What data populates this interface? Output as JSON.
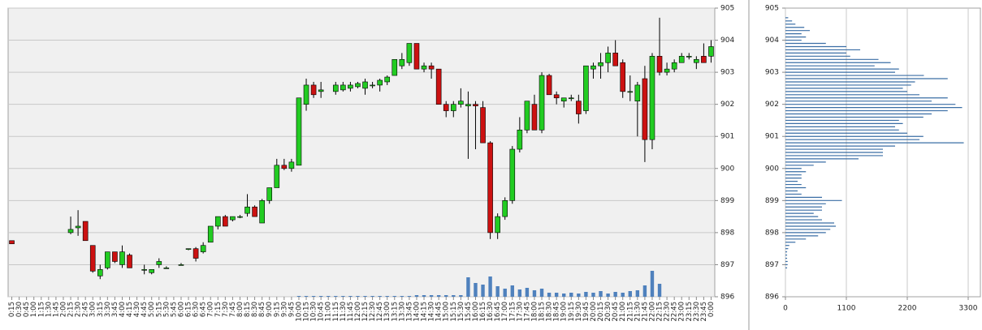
{
  "chart_data": [
    {
      "type": "candlestick",
      "categories": [
        "0:15",
        "0:30",
        "0:45",
        "1:00",
        "1:15",
        "1:30",
        "1:45",
        "2:00",
        "2:15",
        "2:30",
        "2:45",
        "3:00",
        "3:15",
        "3:30",
        "3:45",
        "4:00",
        "4:15",
        "4:30",
        "4:45",
        "5:00",
        "5:15",
        "5:30",
        "5:45",
        "6:00",
        "6:15",
        "6:30",
        "6:45",
        "7:00",
        "7:15",
        "7:30",
        "7:45",
        "8:00",
        "8:15",
        "8:30",
        "8:45",
        "9:00",
        "9:15",
        "9:30",
        "9:45",
        "10:00",
        "10:15",
        "10:30",
        "10:45",
        "11:00",
        "11:15",
        "11:30",
        "11:45",
        "12:00",
        "12:15",
        "12:30",
        "12:45",
        "13:00",
        "13:15",
        "13:30",
        "13:45",
        "14:00",
        "14:15",
        "14:30",
        "14:45",
        "15:00",
        "15:15",
        "15:30",
        "15:45",
        "16:00",
        "16:15",
        "16:30",
        "16:45",
        "17:00",
        "17:15",
        "17:30",
        "17:45",
        "18:00",
        "18:15",
        "18:30",
        "18:45",
        "19:00",
        "19:15",
        "19:30",
        "19:45",
        "20:00",
        "20:15",
        "20:30",
        "20:45",
        "21:00",
        "21:15",
        "21:30",
        "21:45",
        "22:00",
        "22:15",
        "22:30",
        "22:45",
        "23:00",
        "23:15",
        "23:30",
        "23:45",
        "0:00"
      ],
      "open": [
        897.75,
        null,
        null,
        null,
        null,
        null,
        null,
        null,
        898.0,
        898.15,
        898.35,
        897.6,
        896.65,
        896.9,
        897.4,
        897.0,
        897.3,
        null,
        896.85,
        896.75,
        897.0,
        896.9,
        null,
        897.0,
        897.5,
        897.5,
        897.4,
        897.7,
        898.2,
        898.5,
        898.4,
        898.5,
        898.6,
        898.8,
        898.3,
        899.0,
        899.4,
        900.1,
        900.0,
        900.1,
        902.0,
        902.6,
        902.4,
        null,
        902.4,
        902.45,
        902.5,
        902.55,
        902.5,
        902.6,
        902.6,
        902.7,
        902.9,
        903.2,
        903.3,
        903.9,
        903.1,
        903.2,
        903.1,
        902.0,
        901.8,
        902.0,
        901.95,
        902.0,
        901.9,
        900.8,
        898.0,
        898.5,
        899.0,
        900.6,
        901.2,
        902.0,
        901.2,
        902.9,
        902.3,
        902.1,
        902.2,
        902.1,
        901.8,
        903.1,
        903.2,
        903.3,
        903.6,
        903.3,
        902.4,
        902.1,
        902.8,
        900.9,
        903.5,
        903.0,
        903.1,
        903.3,
        903.5,
        903.3,
        903.5,
        903.5
      ],
      "high": [
        897.75,
        null,
        null,
        null,
        null,
        null,
        null,
        null,
        898.5,
        898.7,
        898.35,
        897.6,
        897.0,
        897.4,
        897.4,
        897.6,
        897.35,
        null,
        897.0,
        896.85,
        897.2,
        896.95,
        null,
        897.05,
        897.5,
        897.55,
        897.7,
        898.2,
        898.5,
        898.55,
        898.5,
        898.55,
        899.2,
        898.85,
        899.05,
        899.4,
        900.3,
        900.3,
        900.3,
        902.2,
        902.8,
        902.7,
        902.7,
        null,
        902.7,
        902.7,
        902.7,
        902.7,
        902.8,
        902.7,
        902.8,
        902.9,
        903.4,
        903.6,
        903.9,
        903.9,
        903.3,
        903.3,
        903.1,
        902.1,
        902.1,
        902.5,
        902.4,
        902.1,
        902.1,
        900.85,
        898.6,
        899.1,
        900.7,
        901.6,
        902.1,
        902.3,
        903.0,
        902.95,
        902.4,
        902.2,
        902.3,
        902.3,
        903.2,
        903.3,
        903.6,
        903.8,
        904.0,
        903.4,
        902.9,
        902.7,
        903.2,
        903.6,
        904.7,
        903.3,
        903.4,
        903.6,
        903.6,
        903.5,
        903.9,
        904.0
      ],
      "low": [
        897.65,
        null,
        null,
        null,
        null,
        null,
        null,
        null,
        897.95,
        897.9,
        897.75,
        896.75,
        896.55,
        896.85,
        897.05,
        896.9,
        896.9,
        null,
        896.7,
        896.7,
        896.9,
        896.9,
        null,
        897.0,
        897.45,
        897.1,
        897.35,
        897.7,
        898.1,
        898.2,
        898.35,
        898.45,
        898.5,
        898.5,
        898.3,
        898.9,
        899.4,
        899.95,
        899.9,
        900.1,
        901.8,
        902.2,
        902.2,
        null,
        902.3,
        902.4,
        902.4,
        902.5,
        902.3,
        902.5,
        902.4,
        902.6,
        902.9,
        903.1,
        903.2,
        903.1,
        903.0,
        902.8,
        902.0,
        901.6,
        901.6,
        901.9,
        900.3,
        900.6,
        900.8,
        897.8,
        897.8,
        898.4,
        898.9,
        900.5,
        901.1,
        901.2,
        901.1,
        902.3,
        902.0,
        901.9,
        902.1,
        901.4,
        901.7,
        902.8,
        902.8,
        903.0,
        903.2,
        902.2,
        902.1,
        901.0,
        900.2,
        900.6,
        902.9,
        902.9,
        903.0,
        903.3,
        903.4,
        903.1,
        903.3,
        903.3
      ],
      "close": [
        897.65,
        null,
        null,
        null,
        null,
        null,
        null,
        null,
        898.1,
        898.2,
        897.75,
        896.8,
        896.85,
        897.4,
        897.1,
        897.4,
        896.9,
        null,
        896.85,
        896.85,
        897.1,
        896.9,
        null,
        897.0,
        897.5,
        897.2,
        897.6,
        898.2,
        898.5,
        898.2,
        898.5,
        898.5,
        898.8,
        898.5,
        899.0,
        899.4,
        900.1,
        900.0,
        900.2,
        902.2,
        902.6,
        902.3,
        902.45,
        null,
        902.6,
        902.6,
        902.6,
        902.65,
        902.7,
        902.6,
        902.75,
        902.85,
        903.4,
        903.4,
        903.9,
        903.1,
        903.2,
        903.1,
        902.0,
        901.8,
        902.0,
        902.1,
        902.0,
        901.95,
        900.8,
        898.0,
        898.5,
        899.0,
        900.6,
        901.2,
        902.1,
        901.2,
        902.9,
        902.3,
        902.2,
        902.2,
        902.2,
        901.7,
        903.2,
        903.2,
        903.3,
        903.6,
        903.2,
        902.4,
        902.4,
        902.6,
        900.9,
        903.5,
        903.0,
        903.1,
        903.3,
        903.5,
        903.5,
        903.4,
        903.3,
        903.8
      ],
      "volume": [
        null,
        null,
        null,
        null,
        null,
        null,
        null,
        null,
        null,
        null,
        null,
        null,
        null,
        null,
        null,
        null,
        null,
        null,
        null,
        null,
        null,
        null,
        null,
        null,
        null,
        null,
        null,
        null,
        null,
        null,
        null,
        null,
        null,
        null,
        null,
        null,
        null,
        null,
        null,
        100,
        100,
        100,
        100,
        100,
        100,
        100,
        100,
        100,
        100,
        100,
        100,
        100,
        100,
        100,
        100,
        200,
        200,
        200,
        200,
        200,
        200,
        200,
        2400,
        1700,
        1500,
        2500,
        1300,
        1000,
        1400,
        900,
        1100,
        800,
        1000,
        500,
        500,
        400,
        500,
        400,
        600,
        500,
        700,
        400,
        600,
        500,
        700,
        800,
        1400,
        3200,
        1600,
        null,
        null,
        null,
        null,
        null,
        null,
        null
      ],
      "up_color": "#22cc22",
      "down_color": "#cc1111",
      "volume_color": "#4f81bd",
      "ylim": [
        896,
        905
      ],
      "yticks": [
        896,
        897,
        898,
        899,
        900,
        901,
        902,
        903,
        904,
        905
      ],
      "grid": true
    },
    {
      "type": "hbar",
      "y": [
        904.7,
        904.6,
        904.5,
        904.4,
        904.3,
        904.2,
        904.1,
        904.0,
        903.9,
        903.8,
        903.7,
        903.6,
        903.5,
        903.4,
        903.3,
        903.2,
        903.1,
        903.0,
        902.9,
        902.8,
        902.7,
        902.6,
        902.5,
        902.4,
        902.3,
        902.2,
        902.1,
        902.0,
        901.9,
        901.8,
        901.7,
        901.6,
        901.5,
        901.4,
        901.3,
        901.2,
        901.1,
        901.0,
        900.9,
        900.8,
        900.7,
        900.6,
        900.5,
        900.4,
        900.3,
        900.2,
        900.1,
        900.0,
        899.9,
        899.8,
        899.7,
        899.6,
        899.5,
        899.4,
        899.3,
        899.2,
        899.1,
        899.0,
        898.9,
        898.8,
        898.7,
        898.6,
        898.5,
        898.4,
        898.3,
        898.2,
        898.1,
        898.0,
        897.9,
        897.8,
        897.7,
        897.6,
        897.5,
        897.4,
        897.3,
        897.2,
        897.1,
        897.0,
        896.9
      ],
      "values": [
        50,
        120,
        180,
        340,
        440,
        290,
        370,
        290,
        730,
        1100,
        1350,
        1100,
        1170,
        1680,
        1900,
        1610,
        2050,
        1980,
        2500,
        2930,
        2340,
        2270,
        2120,
        2200,
        2420,
        2930,
        2640,
        3070,
        3190,
        2930,
        2640,
        2490,
        2050,
        2120,
        1980,
        2050,
        2200,
        2490,
        2420,
        3220,
        1980,
        1760,
        1760,
        1760,
        1320,
        730,
        510,
        290,
        370,
        290,
        290,
        220,
        290,
        370,
        220,
        290,
        660,
        1020,
        730,
        660,
        660,
        510,
        590,
        660,
        880,
        910,
        810,
        730,
        590,
        370,
        180,
        70,
        50,
        30,
        30,
        30,
        40,
        40,
        30
      ],
      "color": "#3a6ea5",
      "xlim": [
        0,
        3300
      ],
      "xticks": [
        0,
        1100,
        2200,
        3300
      ],
      "ylim": [
        896,
        905
      ],
      "yticks": [
        896,
        897,
        898,
        899,
        900,
        901,
        902,
        903,
        904,
        905
      ],
      "grid": true
    }
  ]
}
